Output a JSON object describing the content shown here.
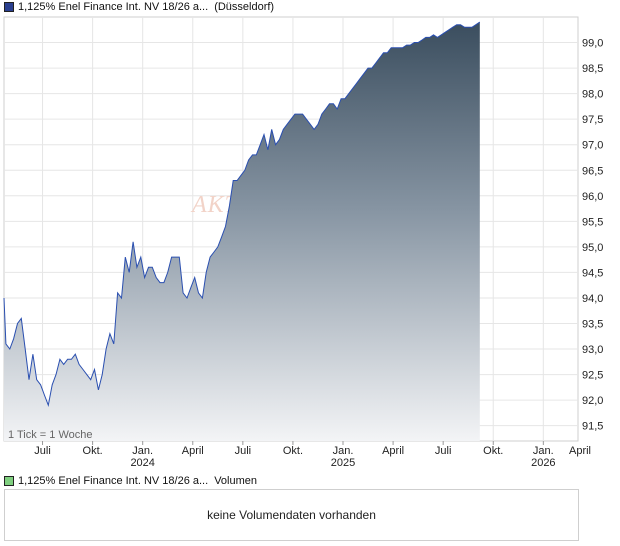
{
  "legend": {
    "price_label": "1,125% Enel Finance Int. NV 18/26 a...",
    "exchange": "(Düsseldorf)",
    "price_swatch_color": "#2a3f8f",
    "volume_label": "1,125% Enel Finance Int. NV 18/26 a...",
    "volume_word": "Volumen",
    "volume_swatch_color": "#7fcf7f"
  },
  "watermark": "AKTIE",
  "tick_note": "1 Tick = 1 Woche",
  "volume_panel": {
    "message": "keine Volumendaten vorhanden"
  },
  "chart_data": {
    "type": "area",
    "x_tick_labels": [
      "Juli",
      "Okt.",
      "Jan.",
      "April",
      "Juli",
      "Okt.",
      "Jan.",
      "April",
      "Juli",
      "Okt.",
      "Jan.",
      "April"
    ],
    "year_labels": [
      "2024",
      "2025",
      "2026"
    ],
    "y_ticks": [
      "91,5",
      "92,0",
      "92,5",
      "93,0",
      "93,5",
      "94,0",
      "94,5",
      "95,0",
      "95,5",
      "96,0",
      "96,5",
      "97,0",
      "97,5",
      "98,0",
      "98,5",
      "99,0"
    ],
    "ylim": [
      91.2,
      99.5
    ],
    "x_range_weeks": [
      0,
      149
    ],
    "x_ticks_week": [
      10,
      23,
      36,
      49,
      62,
      75,
      88,
      101,
      114,
      127,
      140,
      153
    ],
    "year_ticks_week": [
      36,
      88,
      140
    ],
    "series": [
      {
        "values": [
          [
            0,
            94.0
          ],
          [
            0.5,
            93.1
          ],
          [
            1.5,
            93.0
          ],
          [
            2.5,
            93.2
          ],
          [
            3.5,
            93.5
          ],
          [
            4.5,
            93.6
          ],
          [
            5.5,
            93.0
          ],
          [
            6.5,
            92.4
          ],
          [
            7.5,
            92.9
          ],
          [
            8.5,
            92.4
          ],
          [
            9.5,
            92.3
          ],
          [
            10.5,
            92.1
          ],
          [
            11.5,
            91.9
          ],
          [
            12.5,
            92.3
          ],
          [
            13.5,
            92.5
          ],
          [
            14.5,
            92.8
          ],
          [
            15.5,
            92.7
          ],
          [
            16.5,
            92.8
          ],
          [
            17.5,
            92.8
          ],
          [
            18.5,
            92.9
          ],
          [
            19.5,
            92.7
          ],
          [
            20.5,
            92.6
          ],
          [
            21.5,
            92.5
          ],
          [
            22.5,
            92.4
          ],
          [
            23.5,
            92.6
          ],
          [
            24.5,
            92.2
          ],
          [
            25.5,
            92.5
          ],
          [
            26.5,
            93.0
          ],
          [
            27.5,
            93.3
          ],
          [
            28.5,
            93.1
          ],
          [
            29.5,
            94.1
          ],
          [
            30.5,
            94.0
          ],
          [
            31.5,
            94.8
          ],
          [
            32.5,
            94.5
          ],
          [
            33.5,
            95.1
          ],
          [
            34.5,
            94.6
          ],
          [
            35.5,
            94.8
          ],
          [
            36.5,
            94.4
          ],
          [
            37.5,
            94.6
          ],
          [
            38.5,
            94.6
          ],
          [
            39.5,
            94.4
          ],
          [
            40.5,
            94.3
          ],
          [
            41.5,
            94.3
          ],
          [
            42.5,
            94.5
          ],
          [
            43.5,
            94.8
          ],
          [
            44.5,
            94.8
          ],
          [
            45.5,
            94.8
          ],
          [
            46.5,
            94.1
          ],
          [
            47.5,
            94.0
          ],
          [
            48.5,
            94.2
          ],
          [
            49.5,
            94.4
          ],
          [
            50.5,
            94.1
          ],
          [
            51.5,
            94.0
          ],
          [
            52.5,
            94.5
          ],
          [
            53.5,
            94.8
          ],
          [
            54.5,
            94.9
          ],
          [
            55.5,
            95.0
          ],
          [
            56.5,
            95.2
          ],
          [
            57.5,
            95.4
          ],
          [
            58.5,
            95.8
          ],
          [
            59.5,
            96.3
          ],
          [
            60.5,
            96.3
          ],
          [
            61.5,
            96.4
          ],
          [
            62.5,
            96.5
          ],
          [
            63.5,
            96.7
          ],
          [
            64.5,
            96.8
          ],
          [
            65.5,
            96.8
          ],
          [
            66.5,
            97.0
          ],
          [
            67.5,
            97.2
          ],
          [
            68.5,
            96.9
          ],
          [
            69.5,
            97.3
          ],
          [
            70.5,
            97.0
          ],
          [
            71.5,
            97.1
          ],
          [
            72.5,
            97.3
          ],
          [
            73.5,
            97.4
          ],
          [
            74.5,
            97.5
          ],
          [
            75.5,
            97.6
          ],
          [
            76.5,
            97.6
          ],
          [
            77.5,
            97.6
          ],
          [
            78.5,
            97.5
          ],
          [
            79.5,
            97.4
          ],
          [
            80.5,
            97.3
          ],
          [
            81.5,
            97.4
          ],
          [
            82.5,
            97.6
          ],
          [
            83.5,
            97.7
          ],
          [
            84.5,
            97.8
          ],
          [
            85.5,
            97.8
          ],
          [
            86.5,
            97.7
          ],
          [
            87.5,
            97.9
          ],
          [
            88.5,
            97.9
          ],
          [
            89.5,
            98.0
          ],
          [
            90.5,
            98.1
          ],
          [
            91.5,
            98.2
          ],
          [
            92.5,
            98.3
          ],
          [
            93.5,
            98.4
          ],
          [
            94.5,
            98.5
          ],
          [
            95.5,
            98.5
          ],
          [
            96.5,
            98.6
          ],
          [
            97.5,
            98.7
          ],
          [
            98.5,
            98.8
          ],
          [
            99.5,
            98.8
          ],
          [
            100.5,
            98.9
          ],
          [
            101.5,
            98.9
          ],
          [
            102.5,
            98.9
          ],
          [
            103.5,
            98.9
          ],
          [
            104.5,
            98.95
          ],
          [
            105.5,
            98.95
          ],
          [
            106.5,
            99.0
          ],
          [
            107.5,
            99.0
          ],
          [
            108.5,
            99.05
          ],
          [
            109.5,
            99.1
          ],
          [
            110.5,
            99.1
          ],
          [
            111.5,
            99.15
          ],
          [
            112.5,
            99.1
          ],
          [
            113.5,
            99.15
          ],
          [
            114.5,
            99.2
          ],
          [
            115.5,
            99.25
          ],
          [
            116.5,
            99.3
          ],
          [
            117.5,
            99.35
          ],
          [
            118.5,
            99.35
          ],
          [
            119.5,
            99.3
          ],
          [
            120.5,
            99.3
          ],
          [
            121.5,
            99.3
          ],
          [
            122.5,
            99.35
          ],
          [
            123.5,
            99.4
          ]
        ]
      }
    ]
  }
}
